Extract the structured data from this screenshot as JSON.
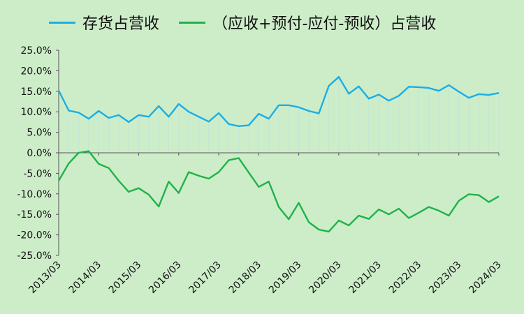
{
  "chart_data": {
    "type": "line",
    "x": [
      "2013/03",
      "2013/06",
      "2013/09",
      "2013/12",
      "2014/03",
      "2014/06",
      "2014/09",
      "2014/12",
      "2015/03",
      "2015/06",
      "2015/09",
      "2015/12",
      "2016/03",
      "2016/06",
      "2016/09",
      "2016/12",
      "2017/03",
      "2017/06",
      "2017/09",
      "2017/12",
      "2018/03",
      "2018/06",
      "2018/09",
      "2018/12",
      "2019/03",
      "2019/06",
      "2019/09",
      "2019/12",
      "2020/03",
      "2020/06",
      "2020/09",
      "2020/12",
      "2021/03",
      "2021/06",
      "2021/09",
      "2021/12",
      "2022/03",
      "2022/06",
      "2022/09",
      "2022/12",
      "2023/03",
      "2023/06",
      "2023/09",
      "2023/12",
      "2024/03"
    ],
    "x_tick_labels": [
      "2013/03",
      "2014/03",
      "2015/03",
      "2016/03",
      "2017/03",
      "2018/03",
      "2019/03",
      "2020/03",
      "2021/03",
      "2022/03",
      "2023/03",
      "2024/03"
    ],
    "y_tick_labels": [
      "25.0%",
      "20.0%",
      "15.0%",
      "10.0%",
      "5.0%",
      "0.0%",
      "-5.0%",
      "-10.0%",
      "-15.0%",
      "-20.0%",
      "-25.0%"
    ],
    "ylim": [
      -25,
      25
    ],
    "grid": false,
    "legend_position": "top",
    "series": [
      {
        "name": "存货占营收",
        "color": "#1aaee6",
        "values": [
          15.2,
          10.3,
          9.8,
          8.3,
          10.2,
          8.5,
          9.2,
          7.5,
          9.2,
          8.8,
          11.4,
          8.8,
          11.9,
          10.0,
          8.8,
          7.6,
          9.7,
          7.0,
          6.5,
          6.7,
          9.5,
          8.3,
          11.6,
          11.6,
          11.1,
          10.2,
          9.6,
          16.3,
          18.5,
          14.4,
          16.2,
          13.2,
          14.2,
          12.7,
          13.9,
          16.1,
          16.0,
          15.8,
          15.1,
          16.5,
          14.9,
          13.4,
          14.3,
          14.1,
          14.6
        ]
      },
      {
        "name": "（应收+预付-应付-预收）占营收",
        "color": "#1fb24a",
        "values": [
          -6.8,
          -2.6,
          0.0,
          0.4,
          -2.7,
          -3.7,
          -6.8,
          -9.5,
          -8.6,
          -10.2,
          -13.1,
          -7.0,
          -9.8,
          -4.7,
          -5.6,
          -6.3,
          -4.7,
          -1.8,
          -1.3,
          -4.8,
          -8.3,
          -7.0,
          -13.2,
          -16.2,
          -12.2,
          -16.9,
          -18.7,
          -19.2,
          -16.5,
          -17.7,
          -15.3,
          -16.1,
          -13.8,
          -15.0,
          -13.6,
          -15.9,
          -14.6,
          -13.2,
          -14.1,
          -15.3,
          -11.7,
          -10.1,
          -10.3,
          -12.0,
          -10.6
        ]
      }
    ]
  }
}
